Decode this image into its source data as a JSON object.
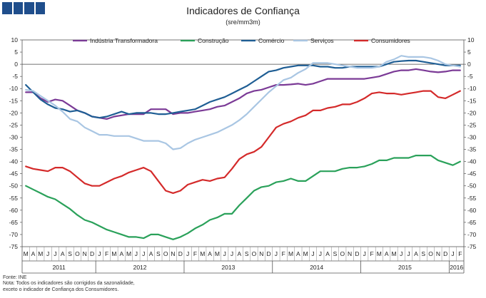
{
  "header": {
    "title": "Indicadores de Confiança",
    "subtitle": "(sre/mm3m)"
  },
  "footnotes": {
    "source": "Fonte: INE",
    "note1": "Nota: Todos os indicadores são corrigidos da sazonalidade,",
    "note2": "exceto o indicador de Confiança dos Consumidores."
  },
  "chart_data": {
    "type": "line",
    "title": "Indicadores de Confiança",
    "subtitle": "(sre/mm3m)",
    "ylim": [
      -75,
      10
    ],
    "yticks": [
      10,
      5,
      0,
      -5,
      -10,
      -15,
      -20,
      -25,
      -30,
      -35,
      -40,
      -45,
      -50,
      -55,
      -60,
      -65,
      -70,
      -75
    ],
    "grid": false,
    "legend_position": "top",
    "x": [
      "M",
      "A",
      "M",
      "J",
      "J",
      "A",
      "S",
      "O",
      "N",
      "D",
      "J",
      "F",
      "M",
      "A",
      "M",
      "J",
      "J",
      "A",
      "S",
      "O",
      "N",
      "D",
      "J",
      "F",
      "M",
      "A",
      "M",
      "J",
      "J",
      "A",
      "S",
      "O",
      "N",
      "D",
      "J",
      "F",
      "M",
      "A",
      "M",
      "J",
      "J",
      "A",
      "S",
      "O",
      "N",
      "D",
      "J",
      "F",
      "M",
      "A",
      "M",
      "J",
      "J",
      "A",
      "S",
      "O",
      "N",
      "D",
      "J",
      "F"
    ],
    "years": [
      {
        "label": "2011",
        "start": 0,
        "end": 9
      },
      {
        "label": "2012",
        "start": 10,
        "end": 21
      },
      {
        "label": "2013",
        "start": 22,
        "end": 33
      },
      {
        "label": "2014",
        "start": 34,
        "end": 45
      },
      {
        "label": "2015",
        "start": 46,
        "end": 57
      },
      {
        "label": "2016",
        "start": 58,
        "end": 59
      }
    ],
    "series": [
      {
        "name": "Indústria Transformadora",
        "color": "#7b3a96",
        "values": [
          -11.5,
          -11.5,
          -14,
          -15.5,
          -14.5,
          -15,
          -17,
          -19,
          -20,
          -21.5,
          -22,
          -22.5,
          -21.5,
          -21,
          -20.5,
          -20.5,
          -20.5,
          -18.5,
          -18.5,
          -18.5,
          -20.5,
          -20,
          -20,
          -19.5,
          -19,
          -18.5,
          -17.5,
          -17,
          -15.5,
          -14,
          -12,
          -11,
          -10.5,
          -9.5,
          -8.5,
          -8.5,
          -8.3,
          -8,
          -8.5,
          -8,
          -7,
          -6,
          -6,
          -6,
          -6,
          -6,
          -6,
          -5.5,
          -5,
          -4,
          -3,
          -2.5,
          -2.5,
          -2,
          -2.5,
          -3,
          -3.3,
          -3,
          -2.5,
          -2.5
        ]
      },
      {
        "name": "Construção",
        "color": "#2aa15a",
        "values": [
          -50,
          -51.5,
          -53,
          -54.5,
          -55.5,
          -57.5,
          -59.5,
          -62,
          -64,
          -65,
          -66.5,
          -68,
          -69,
          -70,
          -71,
          -71,
          -71.5,
          -70,
          -70,
          -71,
          -72,
          -71,
          -69.5,
          -67.5,
          -66,
          -64,
          -63,
          -61.5,
          -61.5,
          -58,
          -55,
          -52,
          -50.5,
          -50,
          -48.5,
          -48,
          -47,
          -48,
          -48,
          -46,
          -44,
          -44,
          -44,
          -43,
          -42.5,
          -42.5,
          -42,
          -41,
          -39.5,
          -39.5,
          -38.5,
          -38.5,
          -38.5,
          -37.5,
          -37.5,
          -37.5,
          -39.5,
          -40.5,
          -41.5,
          -40
        ]
      },
      {
        "name": "Comércio",
        "color": "#1f5e94",
        "values": [
          -8.5,
          -11.5,
          -14.5,
          -16.5,
          -18,
          -18.5,
          -19.5,
          -19,
          -20,
          -21.5,
          -22,
          -21.5,
          -20.5,
          -19.5,
          -20.5,
          -20,
          -20,
          -20,
          -20.5,
          -20.5,
          -20,
          -19.5,
          -19,
          -18.5,
          -17,
          -15.5,
          -14.5,
          -13.5,
          -12,
          -10.5,
          -9,
          -7,
          -5,
          -3,
          -2.5,
          -1.5,
          -1,
          -0.5,
          -0.5,
          -0.5,
          -1,
          -1,
          -1.5,
          -1.5,
          -1,
          -1,
          -1,
          -1,
          -1,
          0,
          1,
          1.3,
          1.5,
          1.5,
          1,
          0.5,
          0,
          -0.5,
          -0.5,
          -0.5
        ]
      },
      {
        "name": "Serviços",
        "color": "#a9c6e3",
        "values": [
          -10.5,
          -11,
          -13,
          -15,
          -17,
          -19.5,
          -22.5,
          -23.5,
          -26,
          -27.5,
          -29,
          -29,
          -29.5,
          -29.5,
          -29.5,
          -30.5,
          -31.5,
          -31.5,
          -31.5,
          -32.5,
          -35,
          -34.5,
          -32.5,
          -31,
          -30,
          -29,
          -28,
          -26.5,
          -25,
          -23,
          -20.5,
          -17.5,
          -14.5,
          -11.5,
          -9,
          -6.5,
          -5.5,
          -3.5,
          -2,
          0.5,
          0.5,
          0.5,
          0,
          -0.5,
          -1,
          -1.5,
          -1.5,
          -1.5,
          -1,
          1,
          2,
          3.5,
          3,
          3,
          3,
          2.5,
          1.5,
          0,
          -0.5,
          -1
        ]
      },
      {
        "name": "Consumidores",
        "color": "#d42a2a",
        "values": [
          -42,
          -43,
          -43.5,
          -44,
          -42.5,
          -42.5,
          -44,
          -46.5,
          -49,
          -50,
          -50,
          -48.5,
          -47,
          -46,
          -44.5,
          -43.5,
          -42.5,
          -44,
          -48,
          -52,
          -53,
          -52,
          -49.5,
          -48.5,
          -47.5,
          -48,
          -47,
          -46.5,
          -43,
          -39,
          -37,
          -36,
          -34,
          -30,
          -26,
          -24.5,
          -23.5,
          -22,
          -21,
          -19,
          -19,
          -18,
          -17.5,
          -16.5,
          -16.5,
          -15.5,
          -14,
          -12,
          -11.5,
          -12,
          -12,
          -12.5,
          -12,
          -11.5,
          -11,
          -11,
          -13.5,
          -14,
          -12.5,
          -11
        ]
      }
    ]
  }
}
